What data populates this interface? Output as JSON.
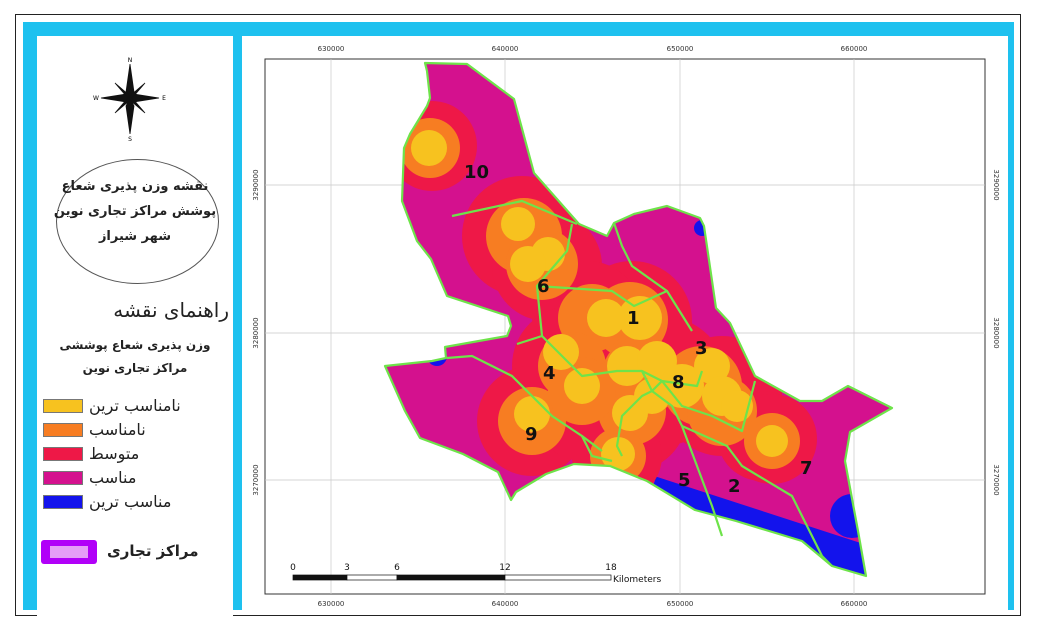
{
  "map_title": {
    "lines": [
      "نقشه وزن پذیری شعاع",
      "پوشش مراکز تجاری نوین",
      "شهر شیراز"
    ]
  },
  "legend": {
    "heading": "راهنمای نقشه",
    "subtitle_lines": [
      "وزن پذیری شعاع پوششی",
      "مراکز تجاری نوین"
    ],
    "items": [
      {
        "label": "نامناسب ترین",
        "color": "#f7c21f"
      },
      {
        "label": "نامناسب",
        "color": "#f77d22"
      },
      {
        "label": "متوسط",
        "color": "#ee1847"
      },
      {
        "label": "مناسب",
        "color": "#d4118e"
      },
      {
        "label": "مناسب ترین",
        "color": "#1313ec"
      }
    ],
    "centers_label": "مراکز تجاری",
    "centers_color": "#b100f8"
  },
  "compass": {
    "n": "N",
    "s": "S",
    "e": "E",
    "w": "W"
  },
  "grid": {
    "x_labels": [
      "630000",
      "640000",
      "650000",
      "660000"
    ],
    "y_labels": [
      "3290000",
      "3280000",
      "3270000"
    ]
  },
  "scale_bar": {
    "ticks": [
      "0",
      "3",
      "6",
      "12",
      "18"
    ],
    "unit": "Kilometers"
  },
  "districts": [
    "1",
    "2",
    "3",
    "4",
    "5",
    "6",
    "7",
    "8",
    "9",
    "10"
  ],
  "colors": {
    "frame": "#1ec1ef",
    "boundary": "#6ee34a",
    "worst": "#f7c21f",
    "poor": "#f77d22",
    "medium": "#ee1847",
    "good": "#d4118e",
    "best": "#1313ec"
  }
}
